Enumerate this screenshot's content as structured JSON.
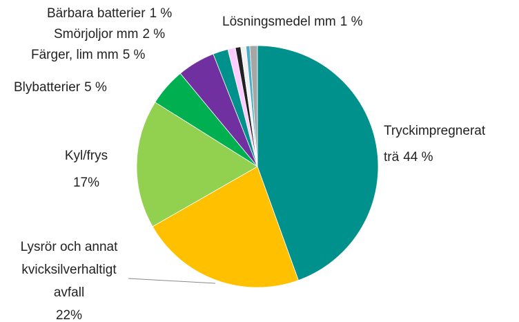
{
  "chart_data": {
    "type": "pie",
    "categories": [
      [
        "Tryckimpregnerat",
        "trä"
      ],
      [
        "Lysrör och annat",
        "kvicksilverhaltigt",
        "avfall"
      ],
      [
        "Kyl/frys"
      ],
      [
        "Blybatterier"
      ],
      [
        "Färger, lim mm"
      ],
      [
        "Smörjoljor mm"
      ],
      [
        "Bärbara batterier"
      ],
      null,
      null,
      null,
      [
        "Lösningsmedel mm"
      ]
    ],
    "values": [
      44,
      22,
      17,
      5,
      5,
      2,
      1,
      0.7,
      0.7,
      0.5,
      1
    ],
    "value_labels": [
      "44 %",
      "22%",
      "17%",
      "5 %",
      "5 %",
      "2 %",
      "1 %",
      null,
      null,
      null,
      "1 %"
    ],
    "colors": [
      "#00918c",
      "#ffc000",
      "#92d050",
      "#00b050",
      "#7030a0",
      "#00918c",
      "#ffccff",
      "#222222",
      "#f2f2f2",
      "#4bacc6",
      "#a6a6a6"
    ]
  }
}
